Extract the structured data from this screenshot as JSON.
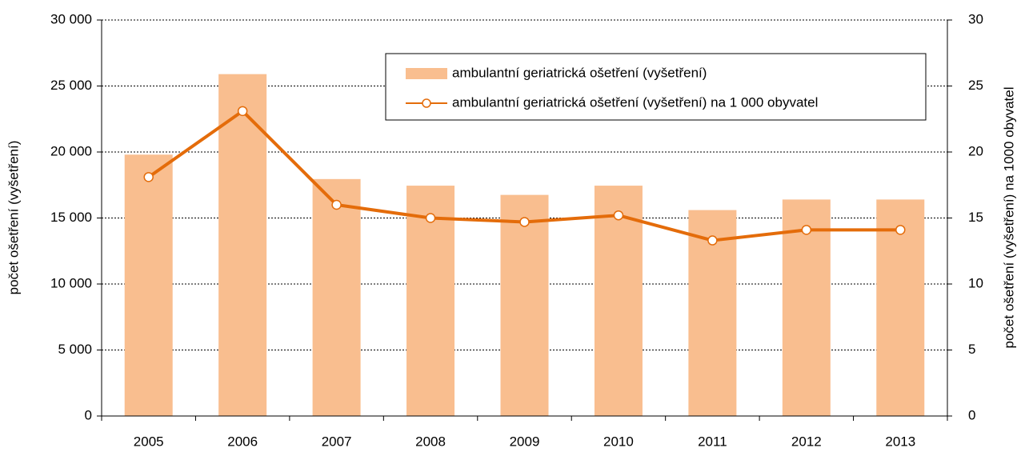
{
  "chart_data": {
    "type": "bar_line",
    "categories": [
      "2005",
      "2006",
      "2007",
      "2008",
      "2009",
      "2010",
      "2011",
      "2012",
      "2013"
    ],
    "series": [
      {
        "name": "ambulantní geriatrická ošetření (vyšetření)",
        "type": "bar",
        "color": "#f9be8f",
        "values": [
          19800,
          25900,
          17950,
          17450,
          16750,
          17450,
          15600,
          16400,
          16400
        ]
      },
      {
        "name": "ambulantní geriatrická ošetření (vyšetření) na 1 000 obyvatel",
        "type": "line",
        "axis": "y2",
        "color": "#e46c0a",
        "values": [
          18.1,
          23.1,
          16.0,
          15.0,
          14.7,
          15.2,
          13.3,
          14.1,
          14.1
        ]
      }
    ],
    "ylabel": "počet ošetření (vyšetření)",
    "y2label": "počet ošetření (vyšetření) na 1000 obyvatel",
    "ylim": [
      0,
      30000
    ],
    "yticks": [
      0,
      {
        "value": 5000,
        "label": "5 000"
      },
      {
        "value": 10000,
        "label": "10 000"
      },
      {
        "value": 15000,
        "label": "15 000"
      },
      {
        "value": 20000,
        "label": "20 000"
      },
      {
        "value": 25000,
        "label": "25 000"
      },
      {
        "value": 30000,
        "label": "30 000"
      }
    ],
    "y2lim": [
      0,
      30
    ],
    "y2ticks": [
      0,
      5,
      10,
      15,
      20,
      25,
      30
    ],
    "grid": true,
    "legend": "top-right"
  }
}
